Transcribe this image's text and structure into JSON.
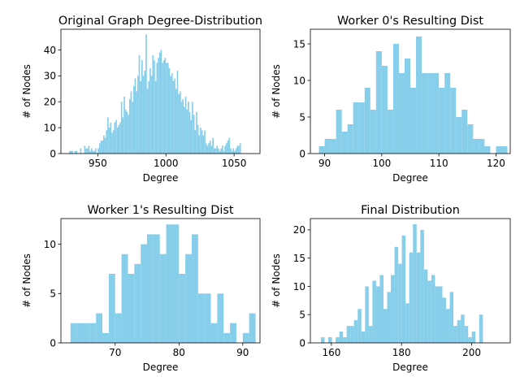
{
  "bar_color": "#87ceeb",
  "chart_data": [
    {
      "type": "bar",
      "title": "Original Graph Degree-Distribution",
      "xlabel": "Degree",
      "ylabel": "# of Nodes",
      "xlim": [
        923,
        1069
      ],
      "ylim": [
        0,
        48
      ],
      "xticks": [
        950,
        1000,
        1050
      ],
      "yticks": [
        0,
        10,
        20,
        30,
        40
      ],
      "x_start": 929,
      "bin_width": 1,
      "values": [
        1,
        1,
        1,
        0,
        1,
        1,
        0,
        0,
        2,
        0,
        0,
        3,
        2,
        2,
        3,
        1,
        2,
        1,
        1,
        2,
        0,
        2,
        4,
        5,
        5,
        7,
        6,
        9,
        14,
        10,
        12,
        8,
        9,
        12,
        13,
        10,
        11,
        12,
        20,
        14,
        22,
        17,
        16,
        15,
        21,
        24,
        20,
        26,
        29,
        24,
        30,
        38,
        28,
        36,
        30,
        32,
        46,
        25,
        28,
        33,
        30,
        38,
        36,
        28,
        35,
        37,
        39,
        40,
        35,
        36,
        37,
        35,
        35,
        33,
        30,
        31,
        28,
        29,
        25,
        32,
        23,
        24,
        20,
        21,
        18,
        22,
        17,
        20,
        16,
        13,
        20,
        15,
        9,
        16,
        11,
        7,
        10,
        9,
        7,
        9,
        4,
        3,
        4,
        5,
        3,
        6,
        2,
        2,
        3,
        2,
        1,
        2,
        3,
        1,
        3,
        4,
        5,
        6,
        2,
        1,
        2,
        1,
        2,
        3,
        3,
        4
      ],
      "grid": false
    },
    {
      "type": "bar",
      "title": "Worker 0's Resulting Dist",
      "xlabel": "Degree",
      "ylabel": "# of Nodes",
      "xlim": [
        87.5,
        122.5
      ],
      "ylim": [
        0,
        17
      ],
      "xticks": [
        90,
        100,
        110,
        120
      ],
      "yticks": [
        0,
        5,
        10,
        15
      ],
      "x_start": 89,
      "bin_width": 1,
      "values": [
        1,
        2,
        2,
        6,
        3,
        4,
        7,
        7,
        9,
        6,
        14,
        12,
        6,
        15,
        11,
        13,
        9,
        16,
        11,
        11,
        11,
        9,
        11,
        9,
        5,
        6,
        4,
        2,
        2,
        1,
        0,
        1,
        1
      ],
      "grid": false
    },
    {
      "type": "bar",
      "title": "Worker 1's Resulting Dist",
      "xlabel": "Degree",
      "ylabel": "# of Nodes",
      "xlim": [
        61.5,
        92.7
      ],
      "ylim": [
        0,
        12.6
      ],
      "xticks": [
        70,
        80,
        90
      ],
      "yticks": [
        0,
        5,
        10
      ],
      "x_start": 63,
      "bin_width": 1,
      "values": [
        2,
        2,
        2,
        2,
        3,
        1,
        7,
        3,
        9,
        7,
        8,
        10,
        11,
        11,
        9,
        12,
        12,
        7,
        9,
        11,
        5,
        5,
        2,
        5,
        1,
        2,
        0,
        1,
        3
      ],
      "grid": false
    },
    {
      "type": "bar",
      "title": "Final Distribution",
      "xlabel": "Degree",
      "ylabel": "# of Nodes",
      "xlim": [
        154,
        211
      ],
      "ylim": [
        0,
        22
      ],
      "xticks": [
        160,
        180,
        200
      ],
      "yticks": [
        0,
        5,
        10,
        15,
        20
      ],
      "x_start": 157,
      "bin_width": 1.05,
      "values": [
        1,
        0,
        1,
        0,
        1,
        2,
        1,
        3,
        3,
        4,
        6,
        2,
        10,
        3,
        11,
        10,
        12,
        6,
        9,
        12,
        17,
        14,
        19,
        7,
        16,
        21,
        16,
        20,
        13,
        11,
        12,
        10,
        10,
        8,
        6,
        9,
        3,
        4,
        5,
        3,
        1,
        2,
        0,
        5
      ],
      "grid": false
    }
  ]
}
